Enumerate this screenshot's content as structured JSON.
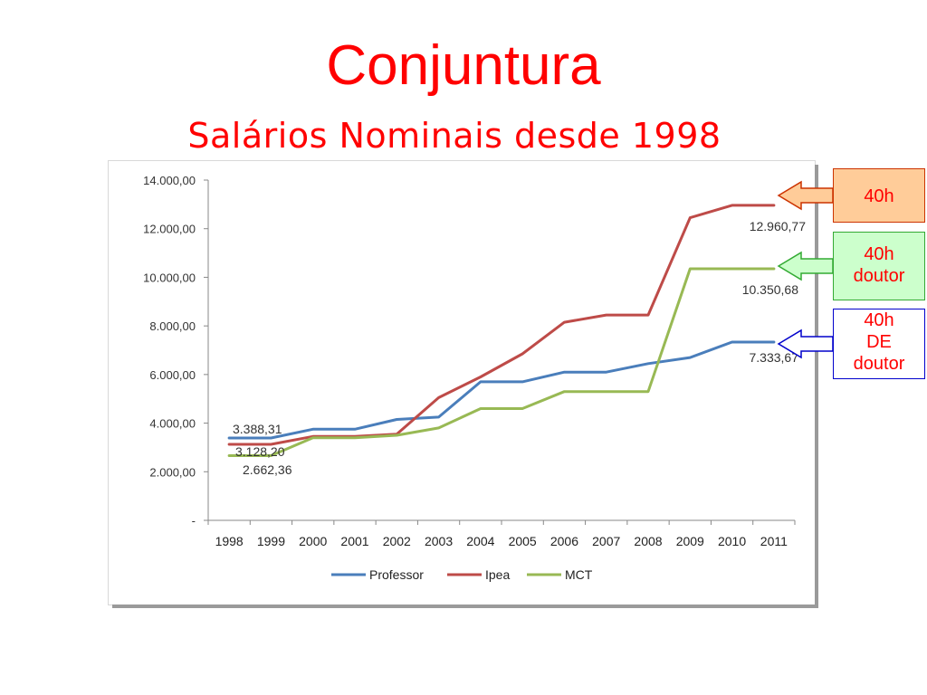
{
  "page": {
    "title": "Conjuntura",
    "subtitle": "Salários Nominais desde 1998"
  },
  "chart_data": {
    "type": "line",
    "x": [
      "1998",
      "1999",
      "2000",
      "2001",
      "2002",
      "2003",
      "2004",
      "2005",
      "2006",
      "2007",
      "2008",
      "2009",
      "2010",
      "2011"
    ],
    "ylim": [
      0,
      14000
    ],
    "yticks": [
      "-",
      "2.000,00",
      "4.000,00",
      "6.000,00",
      "8.000,00",
      "10.000,00",
      "12.000,00",
      "14.000,00"
    ],
    "ytick_values": [
      0,
      2000,
      4000,
      6000,
      8000,
      10000,
      12000,
      14000
    ],
    "grid": false,
    "legend": "bottom",
    "series": [
      {
        "name": "Professor",
        "color": "#4a7ebb",
        "values": [
          3388.31,
          3388.31,
          3750,
          3750,
          4150,
          4250,
          5700,
          5700,
          6100,
          6100,
          6450,
          6700,
          7333.67,
          7333.67
        ]
      },
      {
        "name": "Ipea",
        "color": "#be4b48",
        "values": [
          3128.2,
          3128.2,
          3450,
          3450,
          3550,
          5050,
          5900,
          6850,
          8150,
          8450,
          8450,
          12450,
          12960.77,
          12960.77
        ]
      },
      {
        "name": "MCT",
        "color": "#98b954",
        "values": [
          2662.36,
          2662.36,
          3400,
          3400,
          3500,
          3800,
          4600,
          4600,
          5300,
          5300,
          5300,
          10350.68,
          10350.68,
          10350.68
        ]
      }
    ],
    "annotations": [
      "3.388,31",
      "3.128,20",
      "2.662,36",
      "12.960,77",
      "10.350,68",
      "7.333,67"
    ]
  },
  "callouts": [
    {
      "lines": [
        "40h"
      ],
      "fill": "#ffcc99",
      "stroke": "#cc3300"
    },
    {
      "lines": [
        "40h",
        "doutor"
      ],
      "fill": "#ccffcc",
      "stroke": "#33aa33"
    },
    {
      "lines": [
        "40h",
        "DE",
        "doutor"
      ],
      "fill": "#ffffff",
      "stroke": "#0000cc"
    }
  ]
}
